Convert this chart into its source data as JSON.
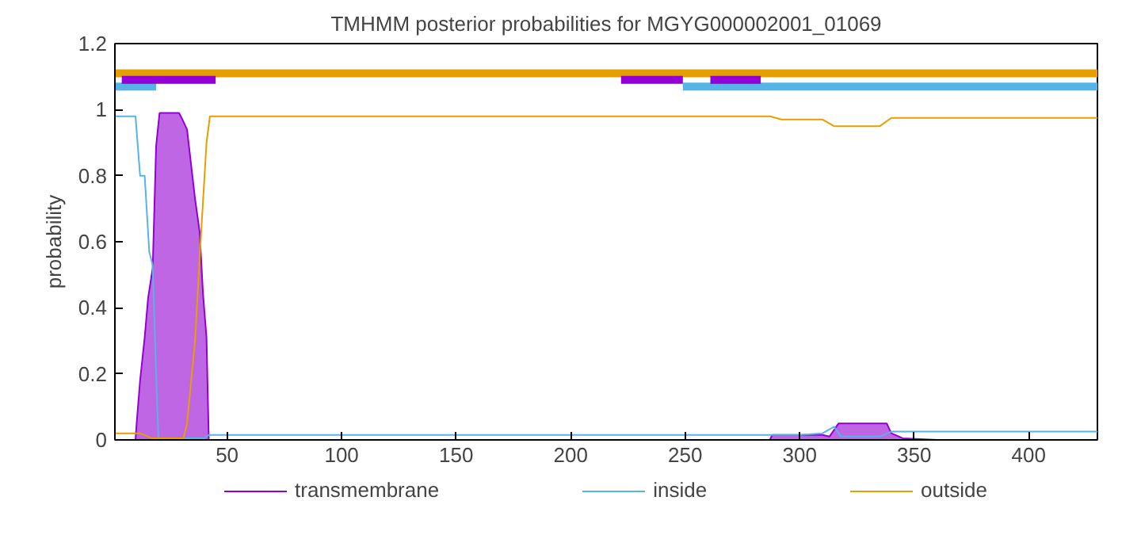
{
  "chart_data": {
    "type": "line",
    "title": "TMHMM posterior probabilities for MGYG000002001_01069",
    "xlabel": null,
    "ylabel": "probability",
    "xlim": [
      1,
      430
    ],
    "ylim": [
      0,
      1.2
    ],
    "xticks": [
      50,
      100,
      150,
      200,
      250,
      300,
      350,
      400
    ],
    "yticks": [
      0,
      0.2,
      0.4,
      0.6,
      0.8,
      1,
      1.2
    ],
    "grid": false,
    "legend": "bottom",
    "series": [
      {
        "name": "transmembrane",
        "type": "area",
        "color": "#9400d3",
        "x": [
          1,
          10,
          10.5,
          12,
          14,
          15.5,
          17.5,
          19,
          20.5,
          29,
          30.5,
          32.5,
          34,
          36,
          38,
          39.5,
          41,
          42,
          287,
          288,
          310,
          313,
          317,
          338,
          340,
          345,
          360,
          430
        ],
        "values": [
          0,
          0,
          0.05,
          0.18,
          0.31,
          0.43,
          0.52,
          0.89,
          0.99,
          0.99,
          0.97,
          0.94,
          0.85,
          0.73,
          0.63,
          0.44,
          0.31,
          0,
          0,
          0.015,
          0.015,
          0.01,
          0.05,
          0.05,
          0.02,
          0.005,
          0,
          0
        ]
      },
      {
        "name": "inside",
        "color": "#56b4e9",
        "x": [
          1,
          10,
          12,
          14,
          16,
          17.5,
          19,
          20,
          40,
          42,
          300,
          310,
          315,
          318,
          335,
          340,
          430
        ],
        "values": [
          0.98,
          0.98,
          0.8,
          0.8,
          0.57,
          0.53,
          0.2,
          0.005,
          0.005,
          0.015,
          0.015,
          0.02,
          0.04,
          0.01,
          0.01,
          0.025,
          0.025
        ]
      },
      {
        "name": "outside",
        "color": "#e69f00",
        "x": [
          1,
          12,
          17,
          31,
          32.5,
          36,
          38,
          41,
          42.5,
          287,
          292,
          310,
          315,
          335,
          340,
          430
        ],
        "values": [
          0.02,
          0.02,
          0.005,
          0.005,
          0.05,
          0.3,
          0.55,
          0.9,
          0.98,
          0.98,
          0.97,
          0.97,
          0.95,
          0.95,
          0.975,
          0.975
        ]
      },
      {
        "color": "#e69f00",
        "x": [
          1,
          430
        ],
        "values": [
          1.11,
          1.11
        ]
      },
      {
        "color": "#56b4e9",
        "x": [
          1,
          19
        ],
        "values": [
          1.07,
          1.07
        ]
      },
      {
        "color": "#56b4e9",
        "x": [
          249,
          430
        ],
        "values": [
          1.07,
          1.07
        ]
      },
      {
        "color": "#9400d3",
        "x": [
          4,
          45
        ],
        "values": [
          1.09,
          1.09
        ]
      },
      {
        "color": "#9400d3",
        "x": [
          222,
          249
        ],
        "values": [
          1.09,
          1.09
        ]
      },
      {
        "color": "#9400d3",
        "x": [
          261,
          283
        ],
        "values": [
          1.09,
          1.09
        ]
      }
    ]
  }
}
